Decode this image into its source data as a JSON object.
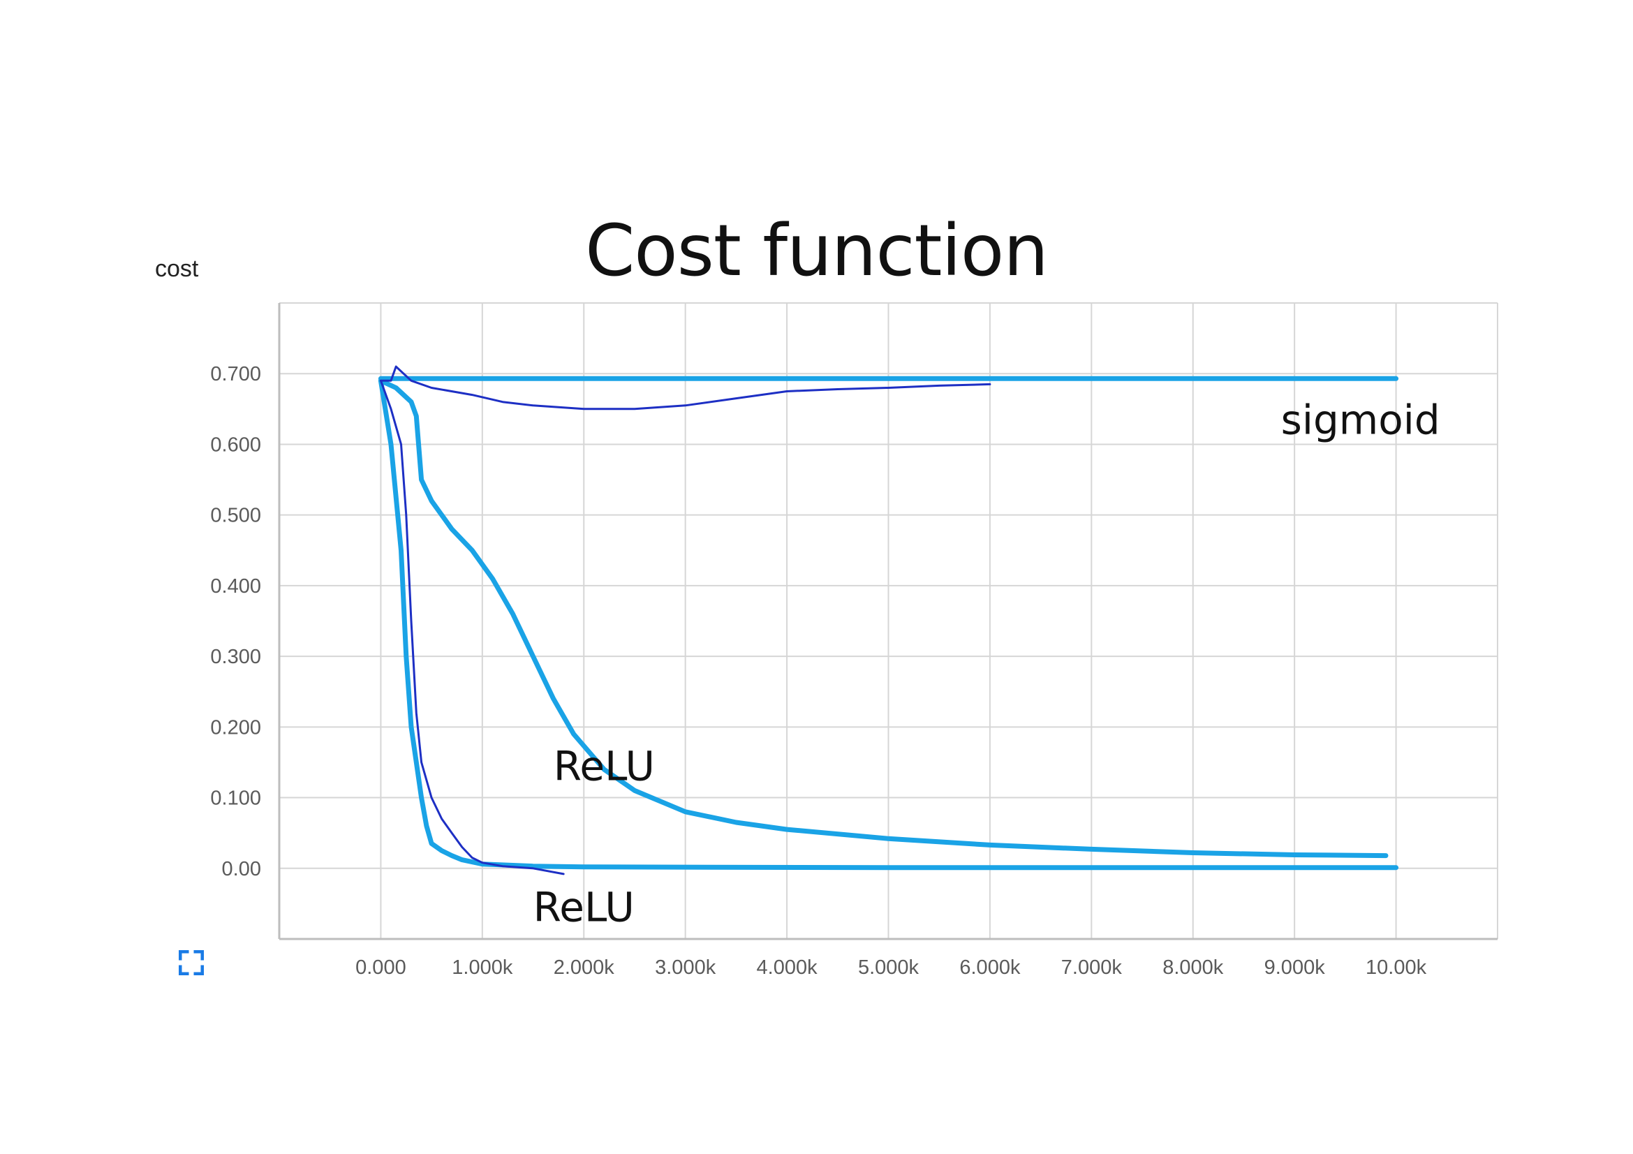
{
  "slide": {
    "title": "Cost function"
  },
  "icons": {
    "fullscreen": "fullscreen-icon"
  },
  "colors": {
    "relu_series": "#1aa3e6",
    "sigmoid_series": "#1aa3e6",
    "reference_series": "#1d2fc4",
    "grid": "#d6d6d6",
    "axis": "#bdbdbd",
    "tick_text": "#5a5a5a",
    "fullscreen_icon": "#1a7be6"
  },
  "chart_data": {
    "type": "line",
    "title": "",
    "xlabel": "",
    "ylabel": "cost",
    "xlim": [
      -1000,
      11000
    ],
    "ylim": [
      -0.1,
      0.8
    ],
    "grid": true,
    "x_tick_values": [
      0,
      1000,
      2000,
      3000,
      4000,
      5000,
      6000,
      7000,
      8000,
      9000,
      10000
    ],
    "x_tick_labels": [
      "0.000",
      "1.000k",
      "2.000k",
      "3.000k",
      "4.000k",
      "5.000k",
      "6.000k",
      "7.000k",
      "8.000k",
      "9.000k",
      "10.00k"
    ],
    "y_tick_values": [
      0,
      0.1,
      0.2,
      0.3,
      0.4,
      0.5,
      0.6,
      0.7
    ],
    "y_tick_labels": [
      "0.00",
      "0.100",
      "0.200",
      "0.300",
      "0.400",
      "0.500",
      "0.600",
      "0.700"
    ],
    "series": [
      {
        "style": "thick",
        "x": [
          0,
          10000
        ],
        "y": [
          0.693,
          0.693
        ]
      },
      {
        "style": "thick",
        "x": [
          0,
          150,
          300,
          350,
          400,
          500,
          700,
          900,
          1100,
          1300,
          1500,
          1700,
          1900,
          2200,
          2500,
          3000,
          3500,
          4000,
          5000,
          6000,
          7000,
          8000,
          9000,
          9900
        ],
        "y": [
          0.69,
          0.68,
          0.66,
          0.64,
          0.55,
          0.52,
          0.48,
          0.45,
          0.41,
          0.36,
          0.3,
          0.24,
          0.19,
          0.14,
          0.11,
          0.08,
          0.065,
          0.055,
          0.042,
          0.033,
          0.027,
          0.022,
          0.019,
          0.018
        ]
      },
      {
        "style": "thick",
        "x": [
          0,
          100,
          200,
          250,
          300,
          350,
          400,
          450,
          500,
          600,
          700,
          800,
          1000,
          1500,
          2000,
          5000,
          10000
        ],
        "y": [
          0.69,
          0.6,
          0.45,
          0.3,
          0.2,
          0.15,
          0.1,
          0.06,
          0.035,
          0.025,
          0.018,
          0.012,
          0.006,
          0.003,
          0.002,
          0.001,
          0.001
        ]
      },
      {
        "style": "thin",
        "x": [
          0,
          100,
          150,
          300,
          500,
          900,
          1200,
          1500,
          2000,
          2500,
          3000,
          3500,
          4000,
          4500,
          5000,
          5500,
          6000
        ],
        "y": [
          0.69,
          0.69,
          0.71,
          0.69,
          0.68,
          0.67,
          0.66,
          0.655,
          0.65,
          0.65,
          0.655,
          0.665,
          0.675,
          0.678,
          0.68,
          0.683,
          0.685
        ]
      },
      {
        "style": "thin",
        "x": [
          0,
          100,
          200,
          250,
          300,
          350,
          400,
          500,
          600,
          700,
          800,
          900,
          1000,
          1200,
          1500,
          1800
        ],
        "y": [
          0.69,
          0.65,
          0.6,
          0.5,
          0.35,
          0.22,
          0.15,
          0.1,
          0.07,
          0.05,
          0.03,
          0.015,
          0.008,
          0.003,
          0.0,
          -0.008
        ]
      }
    ],
    "annotations": [
      {
        "text": "sigmoid",
        "x": 9650,
        "y": 0.615
      },
      {
        "text": "ReLU",
        "x": 2200,
        "y": 0.125
      },
      {
        "text": "ReLU",
        "x": 2000,
        "y": -0.075
      }
    ]
  }
}
